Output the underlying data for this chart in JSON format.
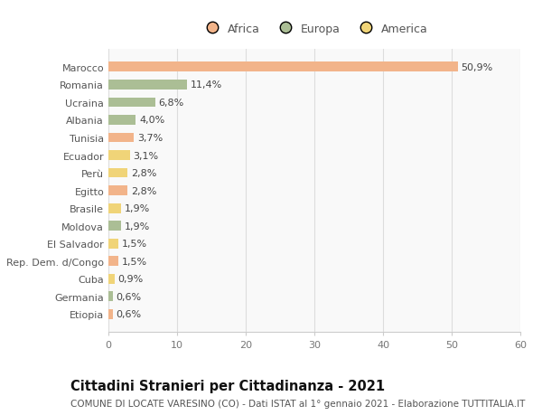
{
  "categories": [
    "Marocco",
    "Romania",
    "Ucraina",
    "Albania",
    "Tunisia",
    "Ecuador",
    "Perù",
    "Egitto",
    "Brasile",
    "Moldova",
    "El Salvador",
    "Rep. Dem. d/Congo",
    "Cuba",
    "Germania",
    "Etiopia"
  ],
  "values": [
    50.9,
    11.4,
    6.8,
    4.0,
    3.7,
    3.1,
    2.8,
    2.8,
    1.9,
    1.9,
    1.5,
    1.5,
    0.9,
    0.6,
    0.6
  ],
  "labels": [
    "50,9%",
    "11,4%",
    "6,8%",
    "4,0%",
    "3,7%",
    "3,1%",
    "2,8%",
    "2,8%",
    "1,9%",
    "1,9%",
    "1,5%",
    "1,5%",
    "0,9%",
    "0,6%",
    "0,6%"
  ],
  "continents": [
    "Africa",
    "Europa",
    "Europa",
    "Europa",
    "Africa",
    "America",
    "America",
    "Africa",
    "America",
    "Europa",
    "America",
    "Africa",
    "America",
    "Europa",
    "Africa"
  ],
  "colors": {
    "Africa": "#F2B48A",
    "Europa": "#ABBE95",
    "America": "#F0D478"
  },
  "legend_labels": [
    "Africa",
    "Europa",
    "America"
  ],
  "legend_colors": [
    "#F2B48A",
    "#ABBE95",
    "#F0D478"
  ],
  "title": "Cittadini Stranieri per Cittadinanza - 2021",
  "subtitle": "COMUNE DI LOCATE VARESINO (CO) - Dati ISTAT al 1° gennaio 2021 - Elaborazione TUTTITALIA.IT",
  "xlim": [
    0,
    60
  ],
  "xticks": [
    0,
    10,
    20,
    30,
    40,
    50,
    60
  ],
  "background_color": "#ffffff",
  "plot_bg_color": "#f9f9f9",
  "grid_color": "#dddddd",
  "bar_height": 0.55,
  "title_fontsize": 10.5,
  "subtitle_fontsize": 7.5,
  "tick_fontsize": 8,
  "label_fontsize": 8,
  "legend_fontsize": 9
}
